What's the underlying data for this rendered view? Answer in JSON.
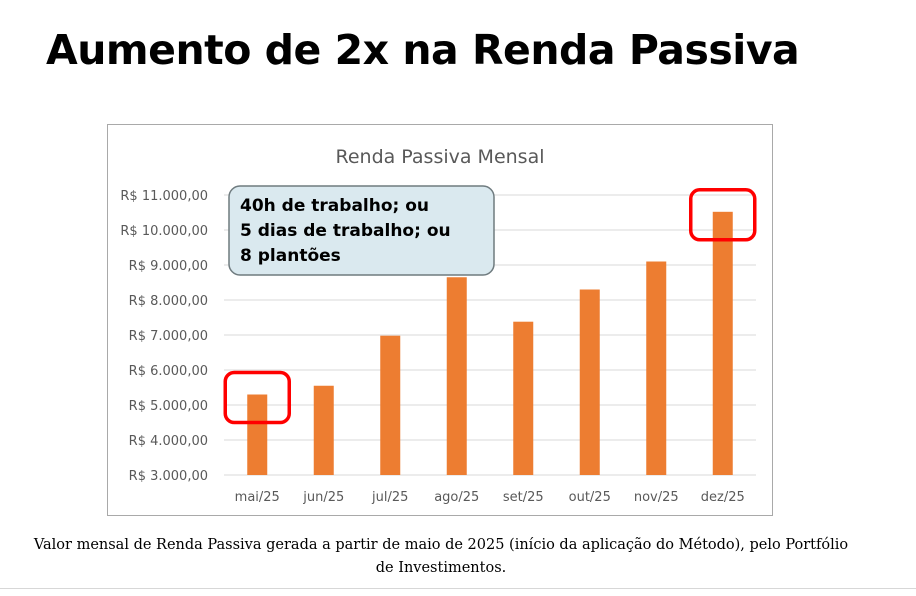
{
  "headline": "Aumento de 2x na Renda Passiva",
  "caption": {
    "line1": "Valor mensal de Renda Passiva gerada a partir de maio de 2025 (início da aplicação do Método), pelo Portfólio",
    "line2": "de Investimentos."
  },
  "callout": {
    "lines": [
      "40h de trabalho; ou",
      "5 dias de trabalho; ou",
      "8 plantões"
    ]
  },
  "colors": {
    "bar": "#ED7D31",
    "highlight": "#FF0000",
    "callout_fill": "#DAE9EF",
    "callout_border": "#6F7B7F",
    "grid": "#D9D9D9"
  },
  "chart_data": {
    "type": "bar",
    "title": "Renda Passiva Mensal",
    "categories": [
      "mai/25",
      "jun/25",
      "jul/25",
      "ago/25",
      "set/25",
      "out/25",
      "nov/25",
      "dez/25"
    ],
    "values": [
      5300,
      5550,
      6980,
      8650,
      7380,
      8300,
      9100,
      10520
    ],
    "ylim": [
      3000,
      11000
    ],
    "yticks": [
      "R$ 3.000,00",
      "R$ 4.000,00",
      "R$ 5.000,00",
      "R$ 6.000,00",
      "R$ 7.000,00",
      "R$ 8.000,00",
      "R$ 9.000,00",
      "R$ 10.000,00",
      "R$ 11.000,00"
    ],
    "highlighted": [
      "mai/25",
      "dez/25"
    ],
    "grid": true,
    "legend": "none"
  }
}
